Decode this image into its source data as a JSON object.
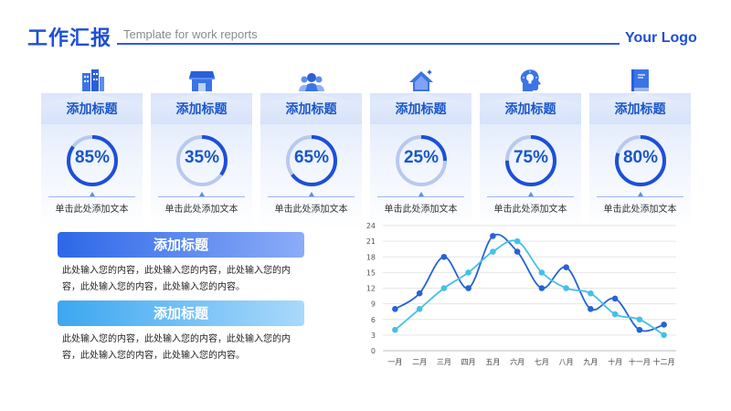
{
  "header": {
    "title": "工作汇报",
    "subtitle": "Template for work reports",
    "logo": "Your Logo"
  },
  "cards": [
    {
      "icon": "buildings-icon",
      "title": "添加标题",
      "percent": 85,
      "label": "85%",
      "caption": "单击此处添加文本"
    },
    {
      "icon": "storefront-icon",
      "title": "添加标题",
      "percent": 35,
      "label": "35%",
      "caption": "单击此处添加文本"
    },
    {
      "icon": "team-icon",
      "title": "添加标题",
      "percent": 65,
      "label": "65%",
      "caption": "单击此处添加文本"
    },
    {
      "icon": "house-icon",
      "title": "添加标题",
      "percent": 25,
      "label": "25%",
      "caption": "单击此处添加文本"
    },
    {
      "icon": "idea-head-icon",
      "title": "添加标题",
      "percent": 75,
      "label": "75%",
      "caption": "单击此处添加文本"
    },
    {
      "icon": "book-icon",
      "title": "添加标题",
      "percent": 80,
      "label": "80%",
      "caption": "单击此处添加文本"
    }
  ],
  "blocks": [
    {
      "title": "添加标题",
      "text_line1": "此处输入您的内容，此处输入您的内容，此处输入您的内",
      "text_line2": "容，此处输入您的内容，此处输入您的内容。"
    },
    {
      "title": "添加标题",
      "text_line1": "此处输入您的内容，此处输入您的内容，此处输入您的内",
      "text_line2": "容，此处输入您的内容，此处输入您的内容。"
    }
  ],
  "colors": {
    "primary": "#1d4fd8",
    "ring_track": "#b8c9ee",
    "series_dark": "#2563d6",
    "series_light": "#45c0e8"
  },
  "chart_data": {
    "type": "line",
    "title": "",
    "xlabel": "",
    "ylabel": "",
    "categories": [
      "一月",
      "二月",
      "三月",
      "四月",
      "五月",
      "六月",
      "七月",
      "八月",
      "九月",
      "十月",
      "十一月",
      "十二月"
    ],
    "ylim": [
      0,
      24
    ],
    "yticks": [
      0,
      3,
      6,
      9,
      12,
      15,
      18,
      21,
      24
    ],
    "grid": true,
    "smooth": true,
    "series": [
      {
        "color": "#2563d6",
        "values": [
          8,
          11,
          18,
          12,
          22,
          19,
          12,
          16,
          8,
          10,
          4,
          5
        ]
      },
      {
        "color": "#45c0e8",
        "values": [
          4,
          8,
          12,
          15,
          19,
          21,
          15,
          12,
          11,
          7,
          6,
          3
        ]
      }
    ]
  }
}
